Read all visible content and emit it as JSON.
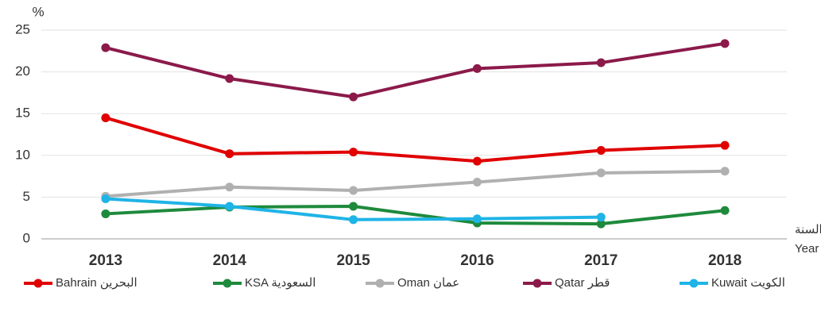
{
  "chart_data": {
    "type": "line",
    "y_label": "%",
    "x_label": [
      "السنة",
      "Year"
    ],
    "categories": [
      "2013",
      "2014",
      "2015",
      "2016",
      "2017",
      "2018"
    ],
    "ylim": [
      0,
      25
    ],
    "yticks": [
      0,
      5,
      10,
      15,
      20,
      25
    ],
    "grid": true,
    "series": [
      {
        "name": "Bahrain البحرين",
        "color": "#e00000",
        "values": [
          14.5,
          10.2,
          10.4,
          9.3,
          10.6,
          11.2
        ]
      },
      {
        "name": "KSA السعودية",
        "color": "#1e8a3c",
        "values": [
          3.0,
          3.8,
          3.9,
          1.9,
          1.8,
          3.4
        ]
      },
      {
        "name": "Oman عمان",
        "color": "#b0b0b0",
        "values": [
          5.1,
          6.2,
          5.8,
          6.8,
          7.9,
          8.1
        ]
      },
      {
        "name": "Qatar قطر",
        "color": "#8b1a4a",
        "values": [
          22.9,
          19.2,
          17.0,
          20.4,
          21.1,
          23.4
        ]
      },
      {
        "name": "Kuwait الكويت",
        "color": "#1fb4e6",
        "values": [
          4.8,
          3.9,
          2.3,
          2.4,
          2.6,
          null
        ]
      }
    ],
    "legend": "bottom"
  }
}
